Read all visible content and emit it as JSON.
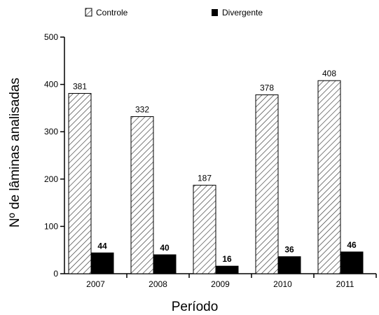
{
  "chart_data": {
    "type": "bar",
    "categories": [
      "2007",
      "2008",
      "2009",
      "2010",
      "2011"
    ],
    "series": [
      {
        "name": "Controle",
        "values": [
          381,
          332,
          187,
          378,
          408
        ],
        "pattern": "hatched"
      },
      {
        "name": "Divergente",
        "values": [
          44,
          40,
          16,
          36,
          46
        ],
        "color": "#000000"
      }
    ],
    "xlabel": "Período",
    "ylabel": "Nº de lâminas analisadas",
    "ylim": [
      0,
      500
    ],
    "yticks": [
      0,
      100,
      200,
      300,
      400,
      500
    ],
    "legend_position": "top",
    "grid": false
  }
}
